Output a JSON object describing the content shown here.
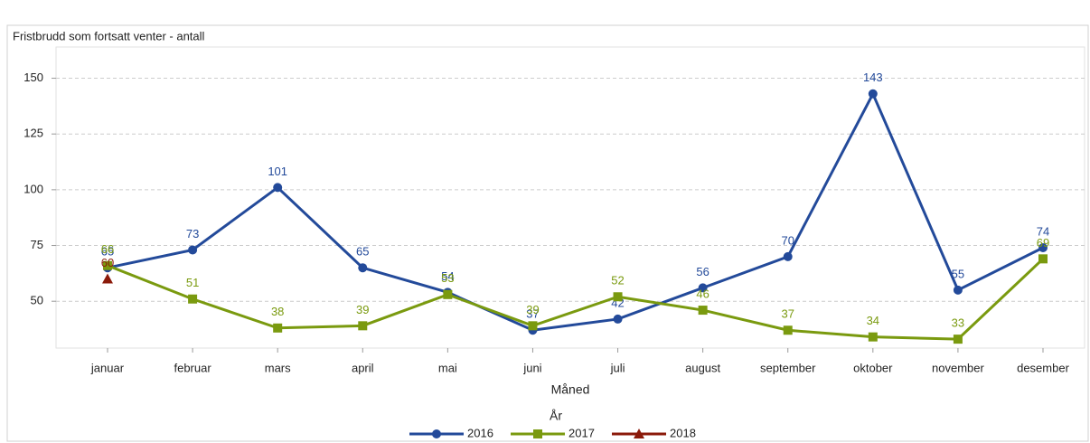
{
  "chart_data": {
    "type": "line",
    "title": "Fristbrudd som fortsatt venter - antall",
    "x_label": "Måned",
    "legend_title": "År",
    "legend": "bottom",
    "grid": true,
    "categories": [
      "januar",
      "februar",
      "mars",
      "april",
      "mai",
      "juni",
      "juli",
      "august",
      "september",
      "oktober",
      "november",
      "desember"
    ],
    "series": [
      {
        "name": "2016",
        "color": "#234a9a",
        "marker": "circle",
        "values": [
          65,
          73,
          101,
          65,
          54,
          37,
          42,
          56,
          70,
          143,
          55,
          74
        ]
      },
      {
        "name": "2017",
        "color": "#7a9a0f",
        "marker": "square",
        "values": [
          66,
          51,
          38,
          39,
          53,
          39,
          52,
          46,
          37,
          34,
          33,
          69
        ]
      },
      {
        "name": "2018",
        "color": "#8b1a0a",
        "marker": "triangle",
        "values": [
          60,
          null,
          null,
          null,
          null,
          null,
          null,
          null,
          null,
          null,
          null,
          null
        ]
      }
    ],
    "ylim": [
      29,
      164
    ],
    "yticks": [
      50,
      75,
      100,
      125,
      150
    ]
  }
}
